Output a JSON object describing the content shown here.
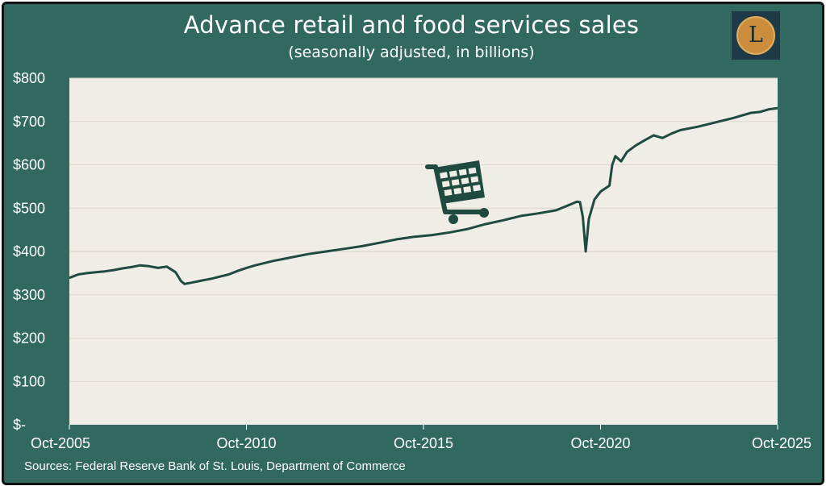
{
  "title": "Advance retail and food services sales",
  "subtitle": "(seasonally adjusted, in billions)",
  "source": "Sources: Federal Reserve Bank of St. Louis, Department of Commerce",
  "logo": {
    "letter": "L",
    "icon": "lowell-coin-logo"
  },
  "colors": {
    "background": "#316960",
    "plot": "#f0ece6",
    "line": "#1e4a40",
    "text": "#ffffff"
  },
  "chart_data": {
    "type": "line",
    "title": "Advance retail and food services sales",
    "subtitle": "(seasonally adjusted, in billions)",
    "x_tick_labels": [
      "Oct-2005",
      "Oct-2010",
      "Oct-2015",
      "Oct-2020",
      "Oct-2025"
    ],
    "x_range": [
      2005.75,
      2025.75
    ],
    "y_tick_labels": [
      "$-",
      "$100",
      "$200",
      "$300",
      "$400",
      "$500",
      "$600",
      "$700",
      "$800"
    ],
    "ylim": [
      0,
      800
    ],
    "grid": true,
    "legend": "none",
    "annotation_icon": "shopping-cart-icon",
    "series": [
      {
        "x": [
          2005.75,
          2006.0,
          2006.25,
          2006.5,
          2006.75,
          2007.0,
          2007.25,
          2007.5,
          2007.75,
          2008.0,
          2008.25,
          2008.5,
          2008.75,
          2008.9,
          2009.0,
          2009.2,
          2009.5,
          2009.75,
          2010.0,
          2010.25,
          2010.5,
          2010.75,
          2011.0,
          2011.5,
          2012.0,
          2012.5,
          2013.0,
          2013.5,
          2014.0,
          2014.5,
          2015.0,
          2015.5,
          2016.0,
          2016.5,
          2017.0,
          2017.5,
          2018.0,
          2018.5,
          2019.0,
          2019.5,
          2020.0,
          2020.08,
          2020.17,
          2020.25,
          2020.33,
          2020.42,
          2020.58,
          2020.75,
          2021.0,
          2021.08,
          2021.17,
          2021.33,
          2021.5,
          2021.75,
          2022.0,
          2022.25,
          2022.5,
          2022.75,
          2023.0,
          2023.5,
          2024.0,
          2024.5,
          2024.75,
          2025.0,
          2025.25,
          2025.5,
          2025.75
        ],
        "y": [
          339,
          347,
          350,
          352,
          354,
          357,
          361,
          364,
          368,
          366,
          362,
          365,
          352,
          332,
          325,
          328,
          333,
          337,
          342,
          347,
          355,
          362,
          368,
          378,
          386,
          394,
          400,
          406,
          412,
          420,
          428,
          434,
          438,
          444,
          452,
          463,
          472,
          482,
          488,
          495,
          512,
          515,
          514,
          480,
          400,
          475,
          520,
          538,
          552,
          600,
          620,
          608,
          630,
          645,
          657,
          668,
          662,
          672,
          680,
          688,
          698,
          708,
          714,
          720,
          722,
          728,
          731
        ]
      }
    ]
  }
}
